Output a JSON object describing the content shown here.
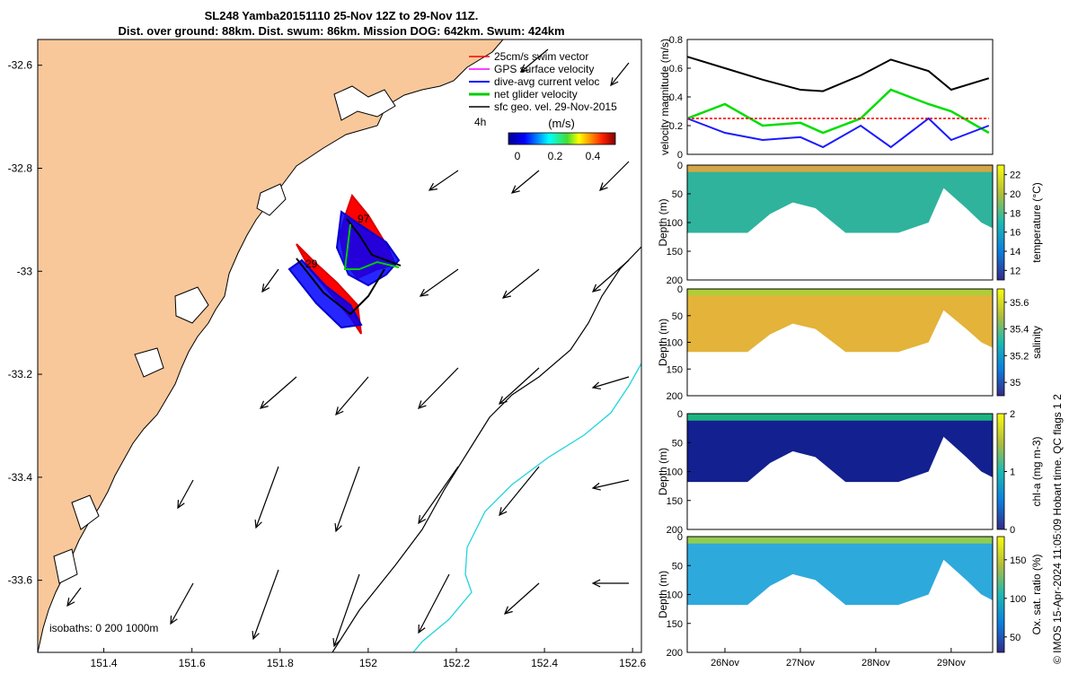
{
  "title": {
    "line1": "SL248 Yamba20151110 25-Nov 12Z to 29-Nov 11Z.",
    "line2": "Dist. over ground: 88km. Dist. swum: 86km. Mission DOG: 642km. Swum: 424km"
  },
  "footer": "© IMOS 15-Apr-2024 11:05:09 Hobart time. QC flags 1  2",
  "map": {
    "x_ticks": [
      "151.4",
      "151.6",
      "151.8",
      "152",
      "152.2",
      "152.4",
      "152.6"
    ],
    "y_ticks": [
      "-32.6",
      "-32.8",
      "-33",
      "-33.2",
      "-33.4",
      "-33.6"
    ],
    "xlim": [
      151.25,
      152.62
    ],
    "ylim": [
      -33.74,
      -32.55
    ],
    "legend": [
      "25cm/s swim vector",
      "GPS surface velocity",
      "dive-avg current veloc",
      "net glider velocity",
      "sfc geo. vel. 29-Nov-2015"
    ],
    "colorbar_title": "(m/s)",
    "colorbar_ticks": [
      "0",
      "0.2",
      "0.4"
    ],
    "isobath_label": "isobaths: 0   200  1000m",
    "labels": [
      "4h",
      "97",
      "29"
    ],
    "colors": {
      "land": "#f8c89b",
      "swim": "#ff0000",
      "gps": "#ff00ff",
      "current": "#0000ff",
      "net": "#00cc00",
      "geo": "#000000",
      "isobath_1000": "#22d4dc"
    }
  },
  "chart_data": [
    {
      "type": "line",
      "ylabel": "velocity magnitude (m/s)",
      "ylim": [
        0,
        0.8
      ],
      "y_ticks": [
        "0",
        "0.2",
        "0.4",
        "0.6",
        "0.8"
      ],
      "x": [
        25.5,
        26.0,
        26.5,
        27.0,
        27.3,
        27.8,
        28.2,
        28.7,
        29.0,
        29.5
      ],
      "series": [
        {
          "color": "#000000",
          "values": [
            0.68,
            0.6,
            0.52,
            0.45,
            0.44,
            0.55,
            0.66,
            0.58,
            0.45,
            0.53
          ]
        },
        {
          "color": "#00dd00",
          "values": [
            0.25,
            0.35,
            0.2,
            0.22,
            0.15,
            0.25,
            0.45,
            0.35,
            0.3,
            0.15
          ]
        },
        {
          "color": "#1a1aff",
          "values": [
            0.25,
            0.15,
            0.1,
            0.12,
            0.05,
            0.2,
            0.05,
            0.25,
            0.1,
            0.2
          ]
        },
        {
          "color": "#ee0000",
          "values": [
            0.25,
            0.25,
            0.25,
            0.25,
            0.25,
            0.25,
            0.25,
            0.25,
            0.25,
            0.25
          ]
        }
      ]
    },
    {
      "type": "heatmap",
      "ylabel": "Depth (m)",
      "cbar_label": "temperature (°C)",
      "y_ticks": [
        "0",
        "50",
        "100",
        "150",
        "200"
      ],
      "cbar_ticks": [
        "12",
        "14",
        "16",
        "18",
        "20",
        "22"
      ],
      "crange": [
        11,
        23
      ]
    },
    {
      "type": "heatmap",
      "ylabel": "Depth (m)",
      "cbar_label": "salinity",
      "y_ticks": [
        "0",
        "50",
        "100",
        "150",
        "200"
      ],
      "cbar_ticks": [
        "35",
        "35.2",
        "35.4",
        "35.6"
      ],
      "crange": [
        34.9,
        35.7
      ]
    },
    {
      "type": "heatmap",
      "ylabel": "Depth (m)",
      "cbar_label": "chl-a (mg m-3)",
      "y_ticks": [
        "0",
        "50",
        "100",
        "150",
        "200"
      ],
      "cbar_ticks": [
        "0",
        "1",
        "2"
      ],
      "crange": [
        0,
        2
      ]
    },
    {
      "type": "heatmap",
      "ylabel": "Depth (m)",
      "cbar_label": "Ox. sat. ratio (%)",
      "y_ticks": [
        "0",
        "50",
        "100",
        "150",
        "200"
      ],
      "cbar_ticks": [
        "50",
        "100",
        "150"
      ],
      "crange": [
        30,
        180
      ]
    }
  ],
  "time_ticks": [
    "26Nov",
    "27Nov",
    "28Nov",
    "29Nov"
  ]
}
